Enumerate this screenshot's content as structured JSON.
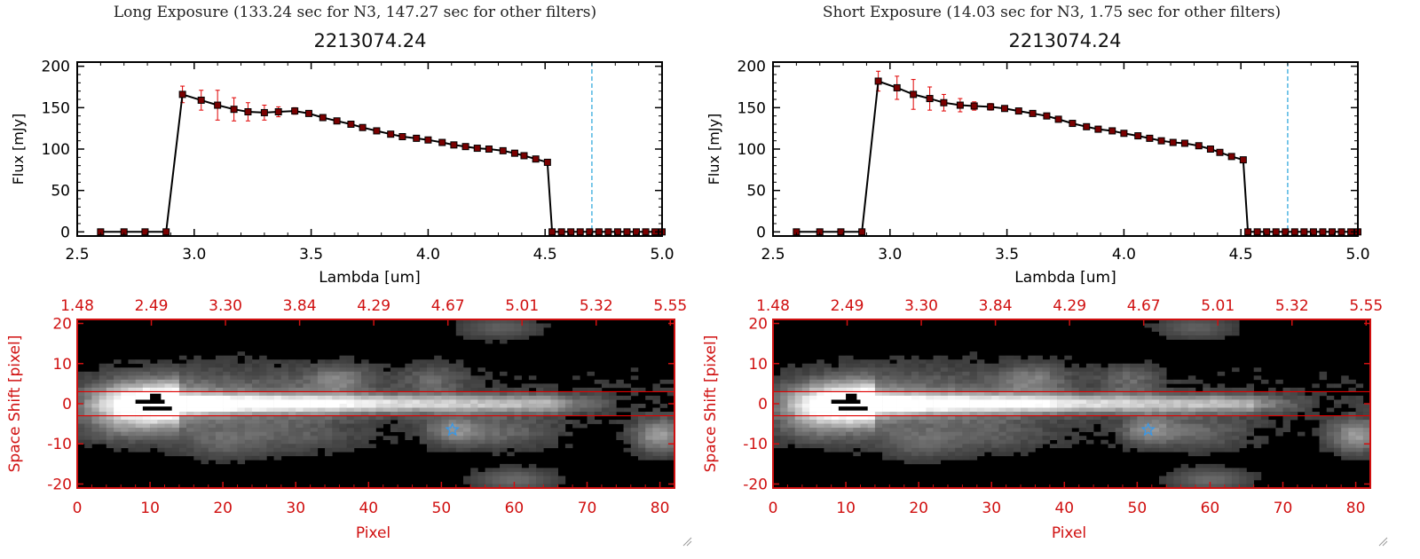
{
  "panels": [
    {
      "title": "Long Exposure (133.24 sec for N3, 147.27 sec for other filters)",
      "object_id": "2213074.24"
    },
    {
      "title": "Short Exposure (14.03 sec for N3, 1.75 sec for other filters)",
      "object_id": "2213074.24"
    }
  ],
  "colors": {
    "axis_black": "#000000",
    "axis_red": "#d01010",
    "data_line": "#000000",
    "marker": "#7a0000",
    "error_bar": "#e00000",
    "cutoff_line": "#33aadd",
    "aperture_line": "#e00000",
    "star_marker": "#3399ee"
  },
  "chart_data": [
    {
      "type": "line",
      "panel": "long",
      "xlabel": "Lambda [um]",
      "ylabel": "Flux [mJy]",
      "xlim": [
        2.5,
        5.0
      ],
      "ylim": [
        -5,
        205
      ],
      "xticks": [
        "2.5",
        "3.0",
        "3.5",
        "4.0",
        "4.5",
        "5.0"
      ],
      "yticks": [
        "0",
        "50",
        "100",
        "150",
        "200"
      ],
      "cutoff_x": 4.7,
      "x": [
        2.6,
        2.7,
        2.79,
        2.88,
        2.95,
        3.03,
        3.1,
        3.17,
        3.23,
        3.3,
        3.36,
        3.43,
        3.49,
        3.55,
        3.61,
        3.67,
        3.72,
        3.78,
        3.84,
        3.89,
        3.95,
        4.0,
        4.06,
        4.11,
        4.16,
        4.21,
        4.26,
        4.32,
        4.37,
        4.41,
        4.46,
        4.51,
        4.53,
        4.57,
        4.61,
        4.65,
        4.69,
        4.73,
        4.77,
        4.81,
        4.85,
        4.89,
        4.93,
        4.97,
        5.0
      ],
      "y": [
        0,
        0,
        0,
        0,
        166,
        159,
        153,
        148,
        145,
        144,
        145,
        146,
        143,
        138,
        134,
        130,
        126,
        122,
        118,
        115,
        113,
        111,
        108,
        105,
        103,
        101,
        100,
        98,
        95,
        92,
        88,
        84,
        0,
        0,
        0,
        0,
        0,
        0,
        0,
        0,
        0,
        0,
        0,
        0,
        0
      ],
      "yerr": [
        0,
        0,
        0,
        0,
        10,
        12,
        18,
        14,
        11,
        9,
        6,
        4,
        3,
        2,
        2,
        2,
        2,
        2,
        2,
        2,
        2,
        2,
        2,
        2,
        2,
        2,
        2,
        2,
        2,
        2,
        2,
        2,
        0,
        0,
        0,
        0,
        0,
        0,
        0,
        0,
        0,
        0,
        0,
        0,
        0
      ],
      "image": {
        "xlabel": "Pixel",
        "ylabel": "Space Shift [pixel]",
        "xlim": [
          0,
          82
        ],
        "ylim": [
          -21,
          21
        ],
        "xticks": [
          "0",
          "10",
          "20",
          "30",
          "40",
          "50",
          "60",
          "70",
          "80"
        ],
        "yticks": [
          "-20",
          "-10",
          "0",
          "10",
          "20"
        ],
        "top_ticks": [
          "1.48",
          "2.49",
          "3.30",
          "3.84",
          "4.29",
          "4.67",
          "5.01",
          "5.32",
          "5.55"
        ],
        "aperture_y": [
          -3,
          3
        ],
        "star_marker": [
          51.5,
          -6.5
        ]
      }
    },
    {
      "type": "line",
      "panel": "short",
      "xlabel": "Lambda [um]",
      "ylabel": "Flux [mJy]",
      "xlim": [
        2.5,
        5.0
      ],
      "ylim": [
        -5,
        205
      ],
      "xticks": [
        "2.5",
        "3.0",
        "3.5",
        "4.0",
        "4.5",
        "5.0"
      ],
      "yticks": [
        "0",
        "50",
        "100",
        "150",
        "200"
      ],
      "cutoff_x": 4.7,
      "x": [
        2.6,
        2.7,
        2.79,
        2.88,
        2.95,
        3.03,
        3.1,
        3.17,
        3.23,
        3.3,
        3.36,
        3.43,
        3.49,
        3.55,
        3.61,
        3.67,
        3.72,
        3.78,
        3.84,
        3.89,
        3.95,
        4.0,
        4.06,
        4.11,
        4.16,
        4.21,
        4.26,
        4.32,
        4.37,
        4.41,
        4.46,
        4.51,
        4.53,
        4.57,
        4.61,
        4.65,
        4.69,
        4.73,
        4.77,
        4.81,
        4.85,
        4.89,
        4.93,
        4.97,
        5.0
      ],
      "y": [
        0,
        0,
        0,
        0,
        182,
        174,
        166,
        161,
        156,
        153,
        152,
        151,
        149,
        146,
        143,
        140,
        136,
        131,
        127,
        124,
        122,
        119,
        116,
        113,
        110,
        108,
        107,
        104,
        100,
        96,
        91,
        87,
        0,
        0,
        0,
        0,
        0,
        0,
        0,
        0,
        0,
        0,
        0,
        0,
        0
      ],
      "yerr": [
        0,
        0,
        0,
        0,
        12,
        14,
        18,
        14,
        10,
        8,
        5,
        4,
        3,
        2,
        2,
        2,
        2,
        2,
        2,
        2,
        2,
        2,
        2,
        2,
        2,
        2,
        2,
        2,
        2,
        2,
        2,
        2,
        0,
        0,
        0,
        0,
        0,
        0,
        0,
        0,
        0,
        0,
        0,
        0,
        0
      ],
      "image": {
        "xlabel": "Pixel",
        "ylabel": "Space Shift [pixel]",
        "xlim": [
          0,
          82
        ],
        "ylim": [
          -21,
          21
        ],
        "xticks": [
          "0",
          "10",
          "20",
          "30",
          "40",
          "50",
          "60",
          "70",
          "80"
        ],
        "yticks": [
          "-20",
          "-10",
          "0",
          "10",
          "20"
        ],
        "top_ticks": [
          "1.48",
          "2.49",
          "3.30",
          "3.84",
          "4.29",
          "4.67",
          "5.01",
          "5.32",
          "5.55"
        ],
        "aperture_y": [
          -3,
          3
        ],
        "star_marker": [
          51.5,
          -6.5
        ]
      }
    }
  ]
}
